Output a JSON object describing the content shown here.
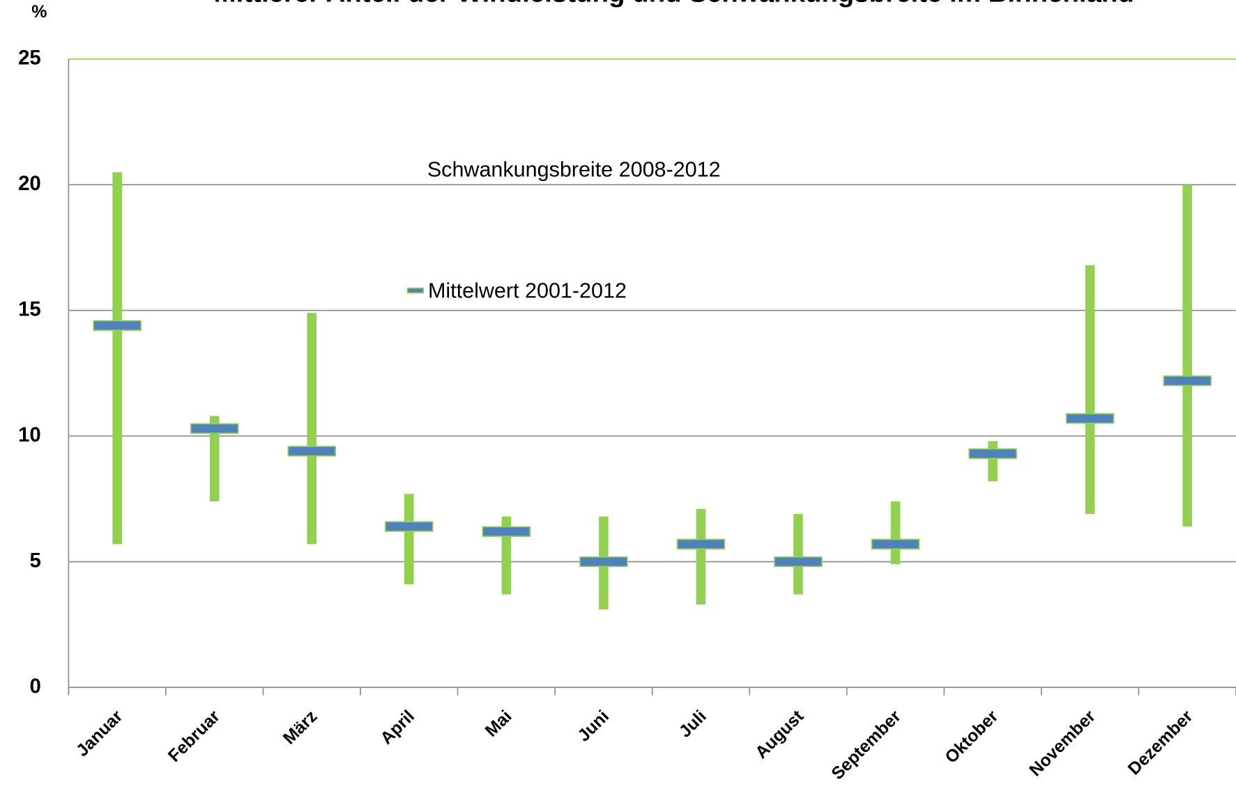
{
  "chart_data": {
    "type": "range",
    "title": "Mittlerer Anteil der Windleistung und Schwankungsbreite im Binnenland",
    "y_label": "%",
    "categories": [
      "Januar",
      "Februar",
      "März",
      "April",
      "Mai",
      "Juni",
      "Juli",
      "August",
      "September",
      "Oktober",
      "November",
      "Dezember"
    ],
    "series": [
      {
        "name": "Schwankungsbreite 2008-2012",
        "color": "#92d050",
        "low": [
          5.7,
          7.4,
          5.7,
          4.1,
          3.7,
          3.1,
          3.3,
          3.7,
          4.9,
          8.2,
          6.9,
          6.4
        ],
        "high": [
          20.5,
          10.8,
          14.9,
          7.7,
          6.8,
          6.8,
          7.1,
          6.9,
          7.4,
          9.8,
          16.8,
          20.0
        ]
      },
      {
        "name": "Mittelwert 2001-2012",
        "color": "#4f81bd",
        "values": [
          14.4,
          10.3,
          9.4,
          6.4,
          6.2,
          5.0,
          5.7,
          5.0,
          5.7,
          9.3,
          10.7,
          12.2
        ]
      }
    ],
    "ylim": [
      0,
      25
    ],
    "yticks": [
      0,
      5,
      10,
      15,
      20,
      25
    ],
    "grid": true
  }
}
